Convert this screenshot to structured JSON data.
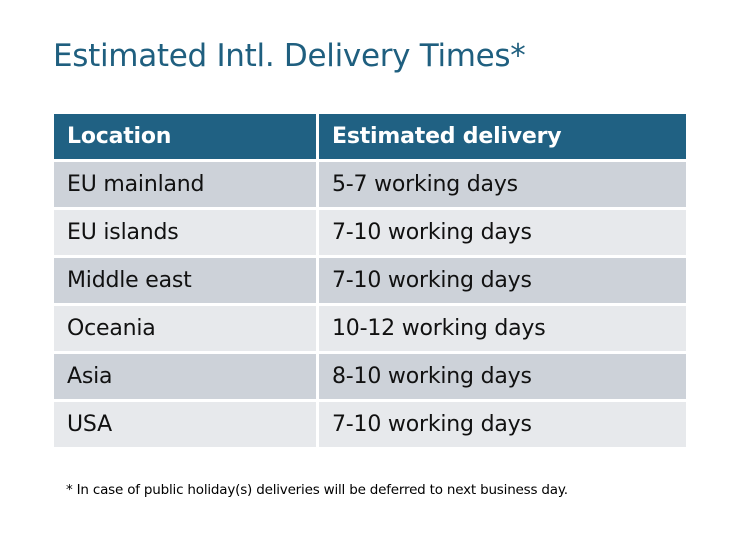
{
  "title": "Estimated Intl. Delivery Times*",
  "table": {
    "headers": [
      "Location",
      "Estimated delivery"
    ],
    "rows": [
      [
        "EU mainland",
        "5-7 working days"
      ],
      [
        "EU islands",
        "7-10 working days"
      ],
      [
        "Middle east",
        "7-10 working days"
      ],
      [
        "Oceania",
        "10-12 working days"
      ],
      [
        "Asia",
        "8-10 working days"
      ],
      [
        "USA",
        "7-10 working days"
      ]
    ]
  },
  "footnote": "* In case of public holiday(s) deliveries will be deferred to next business day.",
  "colors": {
    "header": "#206183",
    "row_dark": "#cdd2d9",
    "row_light": "#e7e9ec",
    "title": "#1f5f7f"
  }
}
